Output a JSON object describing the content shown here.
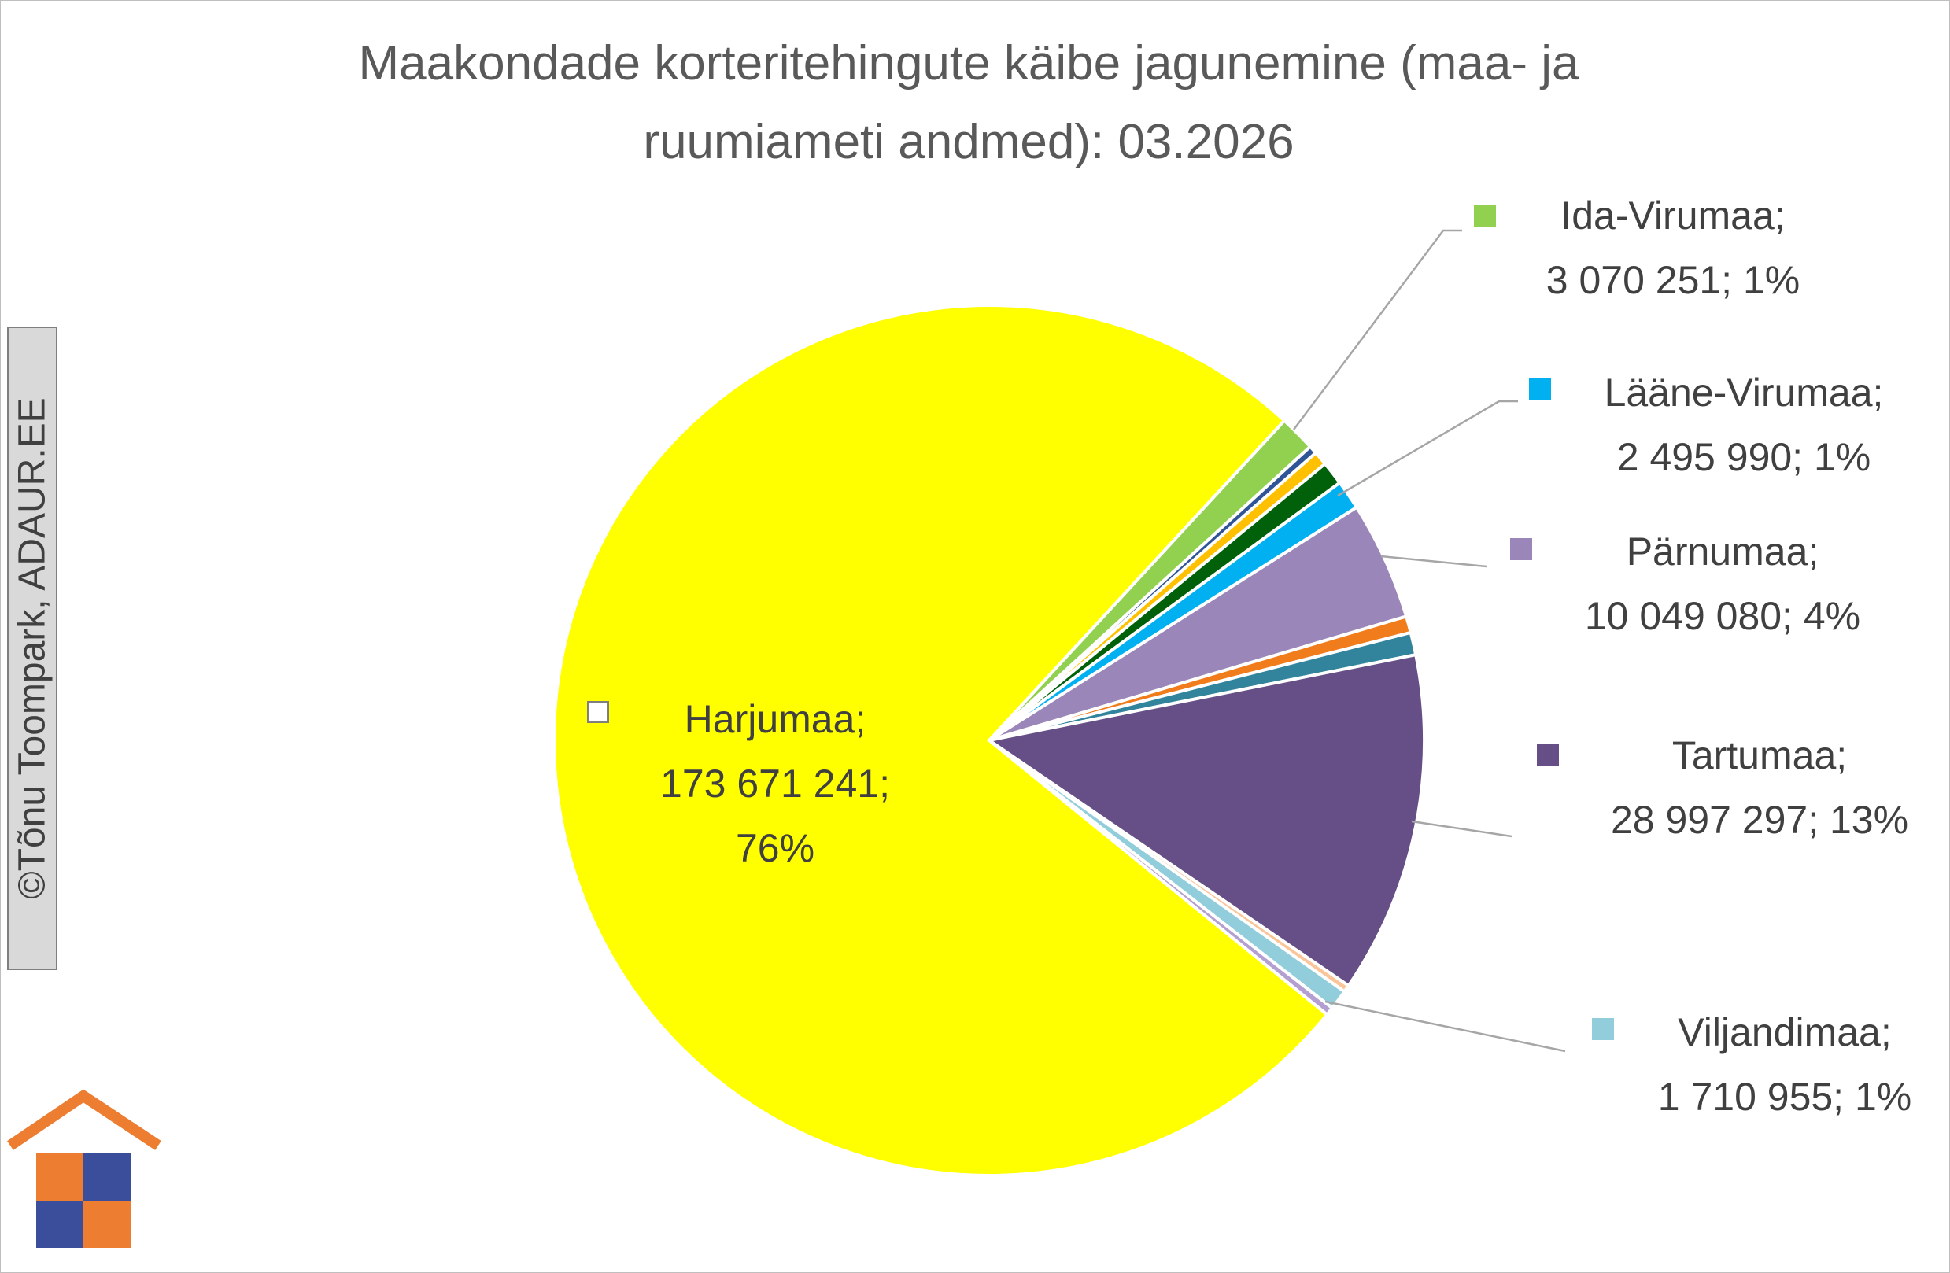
{
  "chart_data": {
    "type": "pie",
    "title": "Maakondade korteritehingute käibe jagunemine (maa- ja ruumiameti andmed): 03.2026",
    "categories": [
      "Ida-Virumaa;",
      null,
      null,
      null,
      "Lääne-Virumaa;",
      "Pärnumaa;",
      null,
      null,
      "Tartumaa;",
      null,
      "Viljandimaa;",
      null,
      "Harjumaa;"
    ],
    "values": [
      3070251,
      700000,
      1200000,
      2000000,
      2495990,
      10049080,
      1400000,
      1900000,
      28997297,
      600000,
      1710955,
      700000,
      173671241
    ],
    "value_labels": [
      "3 070 251; 1%",
      null,
      null,
      null,
      "2 495 990; 1%",
      "10 049 080; 4%",
      null,
      null,
      "28 997 297; 13%",
      null,
      "1 710 955; 1%",
      null,
      "173 671 241; 76%"
    ],
    "colors": [
      "#92d050",
      "#2f5597",
      "#ffc000",
      "#00610a",
      "#00b0f0",
      "#9a86b8",
      "#f07c1b",
      "#31849b",
      "#654f86",
      "#fbc59a",
      "#92cddc",
      "#b4a0d0",
      "#ffff00"
    ]
  },
  "watermark": "©Tõnu Toompark, ADAUR.EE"
}
